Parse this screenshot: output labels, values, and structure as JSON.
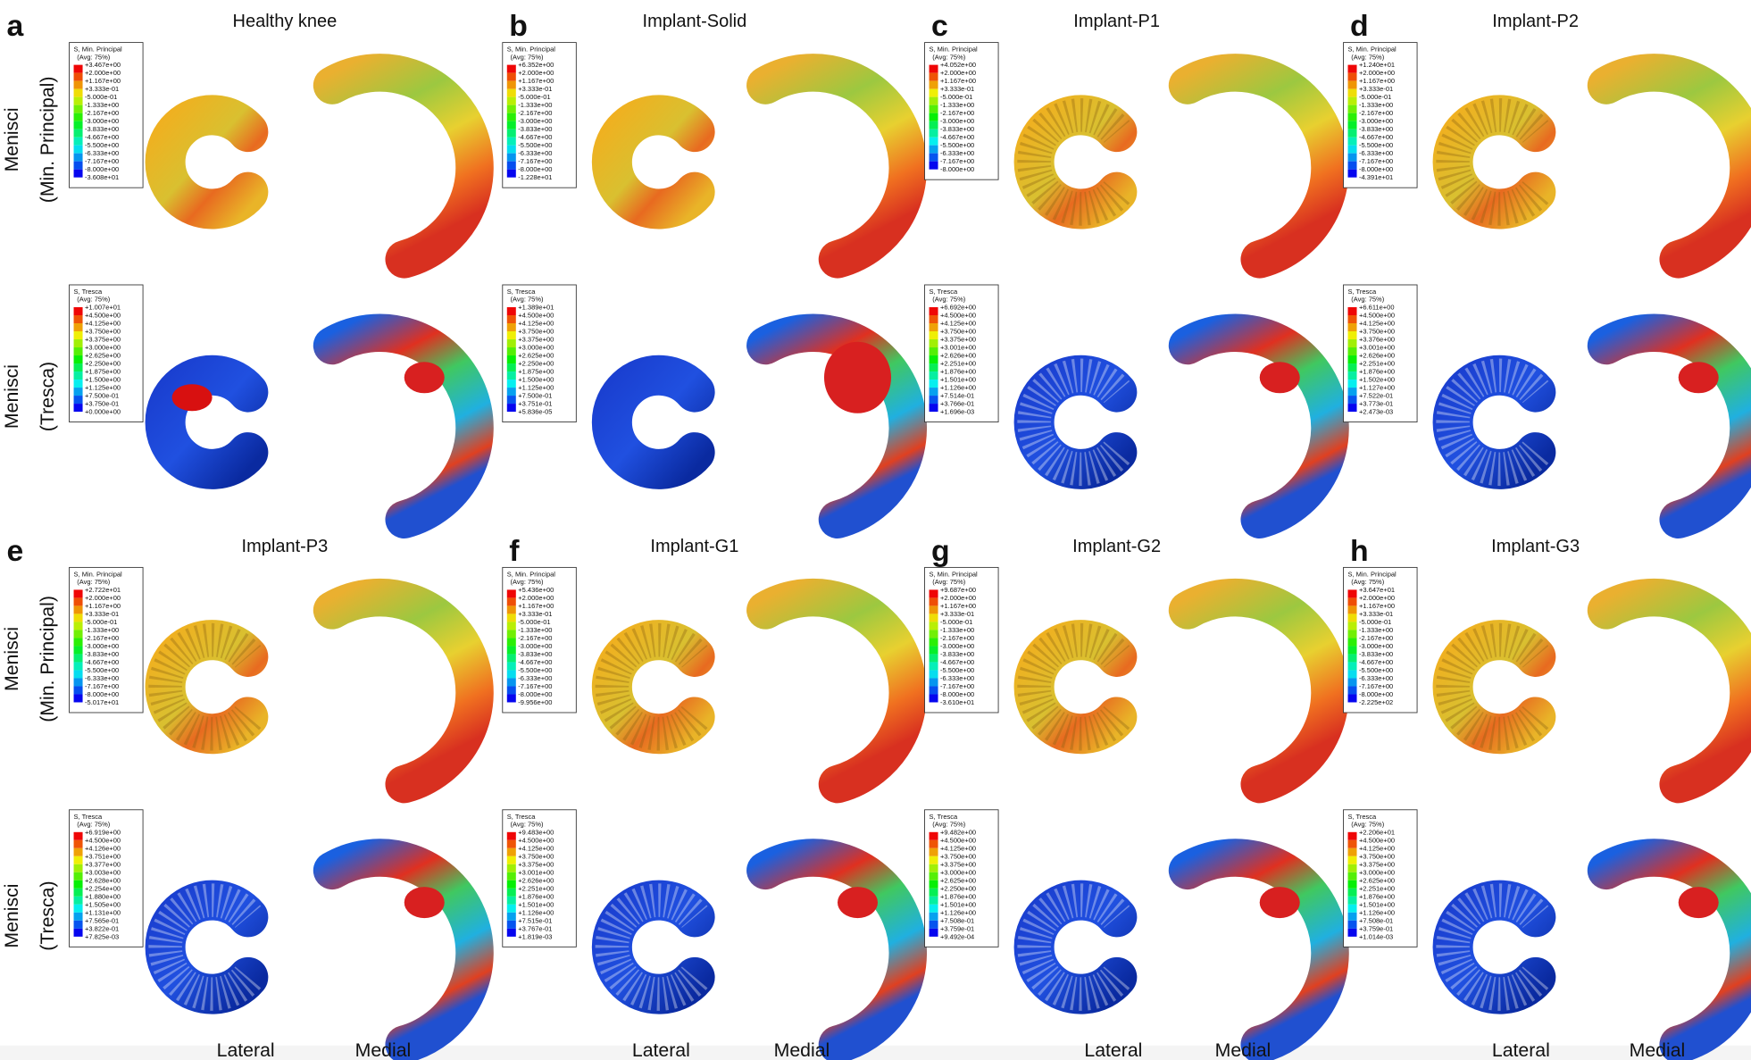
{
  "panels": [
    {
      "letter": "a",
      "title": "Healthy knee",
      "legends": [
        {
          "header": "S, Min. Principal",
          "avg": "(Avg: 75%)",
          "values": [
            "+3.467e+00",
            "+2.000e+00",
            "+1.167e+00",
            "+3.333e-01",
            "-5.000e-01",
            "-1.333e+00",
            "-2.167e+00",
            "-3.000e+00",
            "-3.833e+00",
            "-4.667e+00",
            "-5.500e+00",
            "-6.333e+00",
            "-7.167e+00",
            "-8.000e+00",
            "-3.608e+01"
          ]
        },
        {
          "header": "S, Tresca",
          "avg": "(Avg: 75%)",
          "values": [
            "+1.007e+01",
            "+4.500e+00",
            "+4.125e+00",
            "+3.750e+00",
            "+3.375e+00",
            "+3.000e+00",
            "+2.625e+00",
            "+2.250e+00",
            "+1.875e+00",
            "+1.500e+00",
            "+1.125e+00",
            "+7.500e-01",
            "+3.750e-01",
            "+0.000e+00"
          ]
        }
      ]
    },
    {
      "letter": "b",
      "title": "Implant-Solid",
      "legends": [
        {
          "header": "S, Min. Principal",
          "avg": "(Avg: 75%)",
          "values": [
            "+6.352e+00",
            "+2.000e+00",
            "+1.167e+00",
            "+3.333e-01",
            "-5.000e-01",
            "-1.333e+00",
            "-2.167e+00",
            "-3.000e+00",
            "-3.833e+00",
            "-4.667e+00",
            "-5.500e+00",
            "-6.333e+00",
            "-7.167e+00",
            "-8.000e+00",
            "-1.228e+01"
          ]
        },
        {
          "header": "S, Tresca",
          "avg": "(Avg: 75%)",
          "values": [
            "+1.389e+01",
            "+4.500e+00",
            "+4.125e+00",
            "+3.750e+00",
            "+3.375e+00",
            "+3.000e+00",
            "+2.625e+00",
            "+2.250e+00",
            "+1.875e+00",
            "+1.500e+00",
            "+1.125e+00",
            "+7.500e-01",
            "+3.751e-01",
            "+5.836e-05"
          ]
        }
      ]
    },
    {
      "letter": "c",
      "title": "Implant-P1",
      "legends": [
        {
          "header": "S, Min. Principal",
          "avg": "(Avg: 75%)",
          "values": [
            "+4.052e+00",
            "+2.000e+00",
            "+1.167e+00",
            "+3.333e-01",
            "-5.000e-01",
            "-1.333e+00",
            "-2.167e+00",
            "-3.000e+00",
            "-3.833e+00",
            "-4.667e+00",
            "-5.500e+00",
            "-6.333e+00",
            "-7.167e+00",
            "-8.000e+00"
          ]
        },
        {
          "header": "S, Tresca",
          "avg": "(Avg: 75%)",
          "values": [
            "+6.692e+00",
            "+4.500e+00",
            "+4.125e+00",
            "+3.750e+00",
            "+3.375e+00",
            "+3.001e+00",
            "+2.626e+00",
            "+2.251e+00",
            "+1.876e+00",
            "+1.501e+00",
            "+1.126e+00",
            "+7.514e-01",
            "+3.766e-01",
            "+1.696e-03"
          ]
        }
      ]
    },
    {
      "letter": "d",
      "title": "Implant-P2",
      "legends": [
        {
          "header": "S, Min. Principal",
          "avg": "(Avg: 75%)",
          "values": [
            "+1.240e+01",
            "+2.000e+00",
            "+1.167e+00",
            "+3.333e-01",
            "-5.000e-01",
            "-1.333e+00",
            "-2.167e+00",
            "-3.000e+00",
            "-3.833e+00",
            "-4.667e+00",
            "-5.500e+00",
            "-6.333e+00",
            "-7.167e+00",
            "-8.000e+00",
            "-4.391e+01"
          ]
        },
        {
          "header": "S, Tresca",
          "avg": "(Avg: 75%)",
          "values": [
            "+6.611e+00",
            "+4.500e+00",
            "+4.125e+00",
            "+3.750e+00",
            "+3.376e+00",
            "+3.001e+00",
            "+2.626e+00",
            "+2.251e+00",
            "+1.876e+00",
            "+1.502e+00",
            "+1.127e+00",
            "+7.522e-01",
            "+3.773e-01",
            "+2.473e-03"
          ]
        }
      ]
    },
    {
      "letter": "e",
      "title": "Implant-P3",
      "legends": [
        {
          "header": "S, Min. Principal",
          "avg": "(Avg: 75%)",
          "values": [
            "+2.722e+01",
            "+2.000e+00",
            "+1.167e+00",
            "+3.333e-01",
            "-5.000e-01",
            "-1.333e+00",
            "-2.167e+00",
            "-3.000e+00",
            "-3.833e+00",
            "-4.667e+00",
            "-5.500e+00",
            "-6.333e+00",
            "-7.167e+00",
            "-8.000e+00",
            "-5.017e+01"
          ]
        },
        {
          "header": "S, Tresca",
          "avg": "(Avg: 75%)",
          "values": [
            "+6.919e+00",
            "+4.500e+00",
            "+4.126e+00",
            "+3.751e+00",
            "+3.377e+00",
            "+3.003e+00",
            "+2.628e+00",
            "+2.254e+00",
            "+1.880e+00",
            "+1.505e+00",
            "+1.131e+00",
            "+7.565e-01",
            "+3.822e-01",
            "+7.825e-03"
          ]
        }
      ]
    },
    {
      "letter": "f",
      "title": "Implant-G1",
      "legends": [
        {
          "header": "S, Min. Principal",
          "avg": "(Avg: 75%)",
          "values": [
            "+5.436e+00",
            "+2.000e+00",
            "+1.167e+00",
            "+3.333e-01",
            "-5.000e-01",
            "-1.333e+00",
            "-2.167e+00",
            "-3.000e+00",
            "-3.833e+00",
            "-4.667e+00",
            "-5.500e+00",
            "-6.333e+00",
            "-7.167e+00",
            "-8.000e+00",
            "-9.956e+00"
          ]
        },
        {
          "header": "S, Tresca",
          "avg": "(Avg: 75%)",
          "values": [
            "+9.483e+00",
            "+4.500e+00",
            "+4.125e+00",
            "+3.750e+00",
            "+3.375e+00",
            "+3.001e+00",
            "+2.626e+00",
            "+2.251e+00",
            "+1.876e+00",
            "+1.501e+00",
            "+1.126e+00",
            "+7.515e-01",
            "+3.767e-01",
            "+1.819e-03"
          ]
        }
      ]
    },
    {
      "letter": "g",
      "title": "Implant-G2",
      "legends": [
        {
          "header": "S, Min. Principal",
          "avg": "(Avg: 75%)",
          "values": [
            "+9.687e+00",
            "+2.000e+00",
            "+1.167e+00",
            "+3.333e-01",
            "-5.000e-01",
            "-1.333e+00",
            "-2.167e+00",
            "-3.000e+00",
            "-3.833e+00",
            "-4.667e+00",
            "-5.500e+00",
            "-6.333e+00",
            "-7.167e+00",
            "-8.000e+00",
            "-3.610e+01"
          ]
        },
        {
          "header": "S, Tresca",
          "avg": "(Avg: 75%)",
          "values": [
            "+9.482e+00",
            "+4.500e+00",
            "+4.125e+00",
            "+3.750e+00",
            "+3.375e+00",
            "+3.000e+00",
            "+2.625e+00",
            "+2.250e+00",
            "+1.876e+00",
            "+1.501e+00",
            "+1.126e+00",
            "+7.508e-01",
            "+3.759e-01",
            "+9.492e-04"
          ]
        }
      ]
    },
    {
      "letter": "h",
      "title": "Implant-G3",
      "legends": [
        {
          "header": "S, Min. Principal",
          "avg": "(Avg: 75%)",
          "values": [
            "+3.647e+01",
            "+2.000e+00",
            "+1.167e+00",
            "+3.333e-01",
            "-5.000e-01",
            "-1.333e+00",
            "-2.167e+00",
            "-3.000e+00",
            "-3.833e+00",
            "-4.667e+00",
            "-5.500e+00",
            "-6.333e+00",
            "-7.167e+00",
            "-8.000e+00",
            "-2.225e+02"
          ]
        },
        {
          "header": "S, Tresca",
          "avg": "(Avg: 75%)",
          "values": [
            "+2.206e+01",
            "+4.500e+00",
            "+4.125e+00",
            "+3.750e+00",
            "+3.375e+00",
            "+3.000e+00",
            "+2.625e+00",
            "+2.251e+00",
            "+1.876e+00",
            "+1.501e+00",
            "+1.126e+00",
            "+7.508e-01",
            "+3.759e-01",
            "+1.014e-03"
          ]
        }
      ]
    }
  ],
  "row_labels": [
    {
      "line1": "Menisci",
      "line2": "(Min. Principal)"
    },
    {
      "line1": "Menisci",
      "line2": "(Tresca)"
    },
    {
      "line1": "Menisci",
      "line2": "(Min. Principal)"
    },
    {
      "line1": "Menisci",
      "line2": "(Tresca)"
    }
  ],
  "bottom_labels": [
    "Lateral",
    "Medial",
    "Lateral",
    "Medial",
    "Lateral",
    "Medial",
    "Lateral",
    "Medial"
  ]
}
